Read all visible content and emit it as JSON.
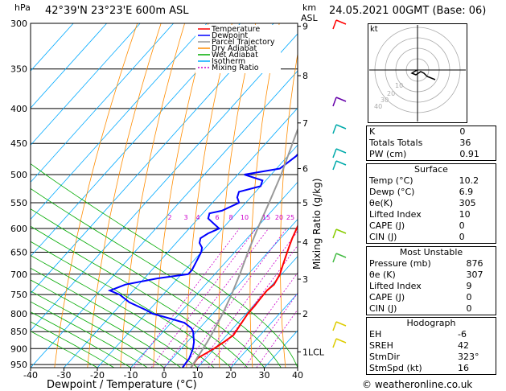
{
  "header": {
    "location": "42°39'N  23°23'E  600m  ASL",
    "datetime": "24.05.2021  00GMT  (Base: 06)",
    "hpa_unit": "hPa",
    "km_unit": "km",
    "asl_unit": "ASL"
  },
  "footer": {
    "copyright": "© weatheronline.co.uk"
  },
  "legend": [
    {
      "name": "Temperature",
      "color": "#ff0000"
    },
    {
      "name": "Dewpoint",
      "color": "#0000ff"
    },
    {
      "name": "Parcel Trajectory",
      "color": "#999999"
    },
    {
      "name": "Dry Adiabat",
      "color": "#ff8c00"
    },
    {
      "name": "Wet Adiabat",
      "color": "#00aa00"
    },
    {
      "name": "Isotherm",
      "color": "#00aaff"
    },
    {
      "name": "Mixing Ratio",
      "color": "#cc00cc"
    }
  ],
  "chart_data": {
    "type": "line",
    "xlabel": "Dewpoint / Temperature (°C)",
    "ylabel": "hPa",
    "right_axis_label": "Mixing Ratio (g/kg)",
    "xlim": [
      -40,
      40
    ],
    "x_ticks": [
      -40,
      -30,
      -20,
      -10,
      0,
      10,
      20,
      30,
      40
    ],
    "pressure_levels": [
      300,
      350,
      400,
      450,
      500,
      550,
      600,
      650,
      700,
      750,
      800,
      850,
      900,
      950
    ],
    "km_ticks": [
      {
        "label": "9",
        "p": 303
      },
      {
        "label": "8",
        "p": 358
      },
      {
        "label": "7",
        "p": 420
      },
      {
        "label": "6",
        "p": 490
      },
      {
        "label": "5",
        "p": 550
      },
      {
        "label": "4",
        "p": 628
      },
      {
        "label": "3",
        "p": 712
      },
      {
        "label": "2",
        "p": 800
      },
      {
        "label": "1LCL",
        "p": 910
      }
    ],
    "mixing_ratio_labels": [
      "2",
      "3",
      "4",
      "6",
      "8",
      "10",
      "15",
      "20",
      "25"
    ],
    "series": [
      {
        "name": "Temperature",
        "color": "#ff0000",
        "points": [
          [
            960,
            8
          ],
          [
            930,
            7.5
          ],
          [
            900,
            9.8
          ],
          [
            880,
            11
          ],
          [
            860,
            12
          ],
          [
            840,
            11.5
          ],
          [
            820,
            11
          ],
          [
            800,
            10.5
          ],
          [
            780,
            10.5
          ],
          [
            760,
            10.2
          ],
          [
            740,
            10
          ],
          [
            725,
            10.5
          ],
          [
            700,
            9.5
          ],
          [
            680,
            8
          ],
          [
            660,
            6.5
          ],
          [
            640,
            5
          ],
          [
            620,
            3.5
          ],
          [
            600,
            2.2
          ],
          [
            580,
            0.8
          ],
          [
            560,
            -0.5
          ],
          [
            540,
            -2
          ],
          [
            520,
            -3.5
          ],
          [
            500,
            -5
          ],
          [
            490,
            -5.5
          ],
          [
            470,
            -7.5
          ],
          [
            450,
            -9.5
          ],
          [
            430,
            -11.5
          ],
          [
            410,
            -13.5
          ],
          [
            390,
            -15.5
          ],
          [
            370,
            -18
          ],
          [
            350,
            -20.5
          ],
          [
            330,
            -23
          ],
          [
            310,
            -26
          ],
          [
            300,
            -27.5
          ]
        ]
      },
      {
        "name": "Dewpoint",
        "color": "#0000ff",
        "points": [
          [
            960,
            5.5
          ],
          [
            930,
            5
          ],
          [
            900,
            3.5
          ],
          [
            880,
            2
          ],
          [
            860,
            0
          ],
          [
            850,
            -1
          ],
          [
            840,
            -2.5
          ],
          [
            825,
            -6
          ],
          [
            810,
            -13
          ],
          [
            800,
            -18
          ],
          [
            790,
            -21
          ],
          [
            770,
            -28
          ],
          [
            750,
            -33
          ],
          [
            740,
            -37
          ],
          [
            725,
            -34
          ],
          [
            710,
            -26
          ],
          [
            700,
            -18
          ],
          [
            690,
            -18
          ],
          [
            670,
            -19
          ],
          [
            650,
            -20
          ],
          [
            640,
            -21
          ],
          [
            630,
            -23
          ],
          [
            620,
            -24
          ],
          [
            610,
            -23
          ],
          [
            600,
            -21
          ],
          [
            590,
            -24
          ],
          [
            580,
            -27
          ],
          [
            570,
            -28
          ],
          [
            565,
            -25
          ],
          [
            550,
            -22
          ],
          [
            540,
            -24
          ],
          [
            530,
            -25
          ],
          [
            520,
            -20
          ],
          [
            510,
            -21
          ],
          [
            500,
            -28
          ],
          [
            490,
            -19
          ],
          [
            470,
            -17.5
          ],
          [
            450,
            -17.5
          ],
          [
            430,
            -17
          ],
          [
            410,
            -16.5
          ],
          [
            400,
            -15
          ],
          [
            380,
            -16
          ],
          [
            365,
            -15.5
          ],
          [
            350,
            -16
          ],
          [
            330,
            -17
          ],
          [
            310,
            -18
          ],
          [
            300,
            -20
          ]
        ]
      },
      {
        "name": "Parcel Trajectory",
        "color": "#999999",
        "points": [
          [
            960,
            8
          ],
          [
            910,
            6.8
          ],
          [
            880,
            6
          ],
          [
            850,
            5
          ],
          [
            800,
            3
          ],
          [
            750,
            0.5
          ],
          [
            700,
            -2.5
          ],
          [
            650,
            -6
          ],
          [
            600,
            -9.5
          ],
          [
            550,
            -13
          ],
          [
            500,
            -17
          ],
          [
            450,
            -22
          ],
          [
            400,
            -27.5
          ],
          [
            350,
            -34
          ],
          [
            300,
            -41
          ]
        ]
      }
    ]
  },
  "hodograph": {
    "label": "kt",
    "ring_labels": [
      "10",
      "20",
      "30",
      "40"
    ]
  },
  "indices": {
    "basic": [
      {
        "k": "K",
        "v": "0"
      },
      {
        "k": "Totals Totals",
        "v": "36"
      },
      {
        "k": "PW (cm)",
        "v": "0.91"
      }
    ],
    "surface": {
      "title": "Surface",
      "rows": [
        {
          "k": "Temp (°C)",
          "v": "10.2"
        },
        {
          "k": "Dewp (°C)",
          "v": "6.9"
        },
        {
          "k": "θe(K)",
          "v": "305"
        },
        {
          "k": "Lifted Index",
          "v": "10"
        },
        {
          "k": "CAPE (J)",
          "v": "0"
        },
        {
          "k": "CIN (J)",
          "v": "0"
        }
      ]
    },
    "unstable": {
      "title": "Most Unstable",
      "rows": [
        {
          "k": "Pressure (mb)",
          "v": "876"
        },
        {
          "k": "θe (K)",
          "v": "307"
        },
        {
          "k": "Lifted Index",
          "v": "9"
        },
        {
          "k": "CAPE (J)",
          "v": "0"
        },
        {
          "k": "CIN (J)",
          "v": "0"
        }
      ]
    },
    "hodograph": {
      "title": "Hodograph",
      "rows": [
        {
          "k": "EH",
          "v": "-6"
        },
        {
          "k": "SREH",
          "v": "42"
        },
        {
          "k": "StmDir",
          "v": "323°"
        },
        {
          "k": "StmSpd (kt)",
          "v": "16"
        }
      ]
    }
  }
}
